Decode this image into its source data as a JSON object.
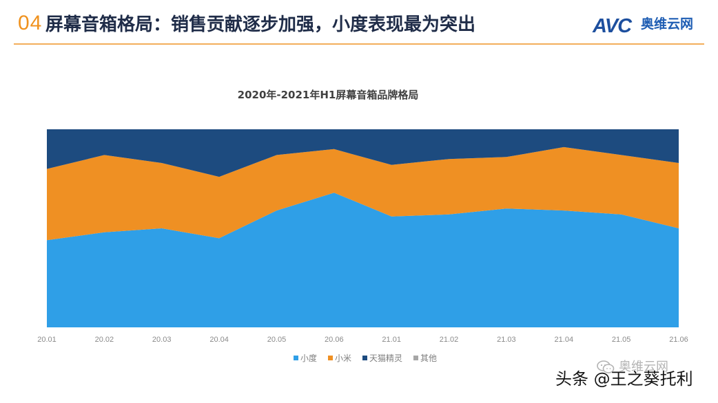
{
  "header": {
    "section_number": "04",
    "title": "屏幕音箱格局：销售贡献逐步加强，小度表现最为突出"
  },
  "logo": {
    "mark": "AVC",
    "name": "奥维云网"
  },
  "chart_data": {
    "type": "area",
    "stacked": "percent",
    "title": "2020年-2021年H1屏幕音箱品牌格局",
    "xlabel": "",
    "ylabel": "",
    "categories": [
      "20.01",
      "20.02",
      "20.03",
      "20.04",
      "20.05",
      "20.06",
      "21.01",
      "21.02",
      "21.03",
      "21.04",
      "21.05",
      "21.06"
    ],
    "ylim": [
      0,
      100
    ],
    "grid": false,
    "legend": "bottom",
    "series": [
      {
        "name": "小度",
        "color": "#2f9fe7",
        "values": [
          44,
          48,
          50,
          45,
          59,
          68,
          56,
          57,
          60,
          59,
          57,
          50
        ]
      },
      {
        "name": "小米",
        "color": "#ef9023",
        "values": [
          36,
          39,
          33,
          31,
          28,
          22,
          26,
          28,
          26,
          32,
          30,
          33
        ]
      },
      {
        "name": "天猫精灵",
        "color": "#1d4b7f",
        "values": [
          20,
          13,
          17,
          24,
          13,
          10,
          18,
          15,
          14,
          9,
          13,
          17
        ]
      },
      {
        "name": "其他",
        "color": "#a6a6a6",
        "values": [
          0,
          0,
          0,
          0,
          0,
          0,
          0,
          0,
          0,
          0,
          0,
          0
        ]
      }
    ]
  },
  "watermarks": {
    "wechat": "奥维云网",
    "toutiao": "头条 @王之葵托利"
  },
  "colors": {
    "accent": "#f0921e",
    "title_text": "#1f2c48",
    "logo_blue": "#1d4f9e"
  }
}
